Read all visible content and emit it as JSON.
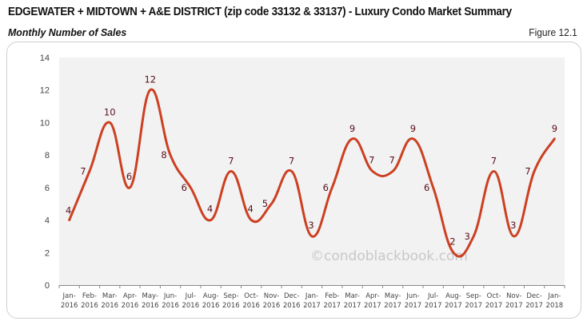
{
  "header": {
    "title": "EDGEWATER + MIDTOWN + A&E DISTRICT (zip code 33132 & 33137) - Luxury Condo Market Summary",
    "subtitle": "Monthly Number of Sales",
    "figure_label": "Figure 12.1"
  },
  "watermark": "©condoblackbook.com",
  "colors": {
    "line": "#cc4022",
    "data_label": "#5a0f1a",
    "plot_background": "#f2f2f2"
  },
  "chart_data": {
    "type": "line",
    "title": "Monthly Number of Sales",
    "xlabel": "",
    "ylabel": "",
    "ylim": [
      0,
      14
    ],
    "yticks": [
      0,
      2,
      4,
      6,
      8,
      10,
      12,
      14
    ],
    "grid": false,
    "legend": null,
    "smooth": true,
    "categories": [
      "Jan-2016",
      "Feb-2016",
      "Mar-2016",
      "Apr-2016",
      "May-2016",
      "Jun-2016",
      "Jul-2016",
      "Aug-2016",
      "Sep-2016",
      "Oct-2016",
      "Nov-2016",
      "Dec-2016",
      "Jan-2017",
      "Feb-2017",
      "Mar-2017",
      "Apr-2017",
      "May-2017",
      "Jun-2017",
      "Jul-2017",
      "Aug-2017",
      "Sep-2017",
      "Oct-2017",
      "Nov-2017",
      "Dec-2017",
      "Jan-2018"
    ],
    "series": [
      {
        "name": "Monthly Number of Sales",
        "values": [
          4,
          7,
          10,
          6,
          12,
          8,
          6,
          4,
          7,
          4,
          5,
          7,
          3,
          6,
          9,
          7,
          7,
          9,
          6,
          2,
          3,
          7,
          3,
          7,
          9
        ]
      }
    ],
    "annotations": [
      "©condoblackbook.com"
    ]
  }
}
